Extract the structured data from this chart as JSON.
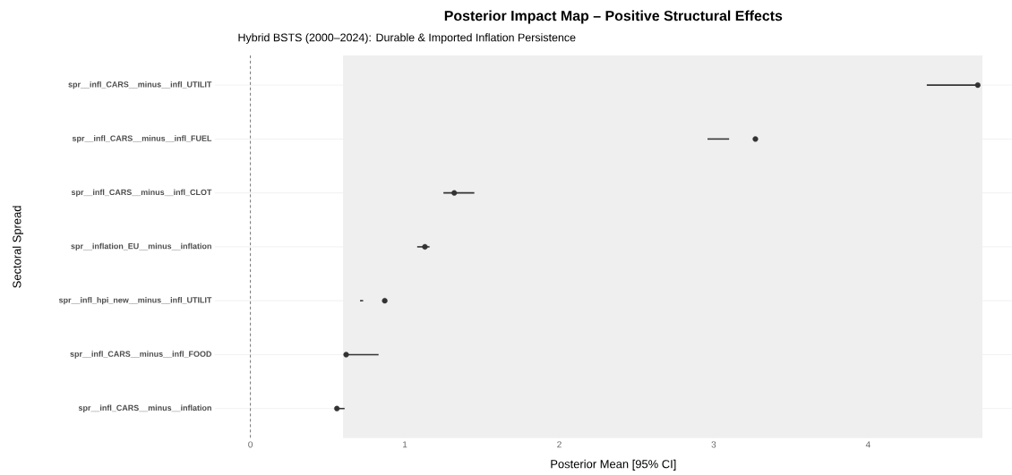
{
  "chart_data": {
    "type": "scatter",
    "orientation": "horizontal",
    "title": "Posterior Impact Map – Positive Structural Effects",
    "subtitle": "Hybrid BSTS (2000–2024): Durable & Imported Inflation Persistence",
    "xlabel": "Posterior Mean [95% CI]",
    "ylabel": "Sectoral Spread",
    "categories": [
      "spr__infl_CARS__minus__infl_UTILIT",
      "spr__infl_CARS__minus__infl_FUEL",
      "spr__infl_CARS__minus__infl_CLOT",
      "spr__inflation_EU__minus__inflation",
      "spr__infl_hpi_new__minus__infl_UTILIT",
      "spr__infl_CARS__minus__infl_FOOD",
      "spr__infl_CARS__minus__inflation"
    ],
    "series": [
      {
        "type": "bar",
        "color": "#333333",
        "base": [
          4.38,
          2.96,
          1.25,
          1.08,
          0.71,
          0.62,
          0.56
        ],
        "values": [
          0.33,
          0.14,
          0.2,
          0.08,
          0.02,
          0.21,
          0.05
        ]
      },
      {
        "color": "#333333",
        "values": [
          4.71,
          3.27,
          1.32,
          1.13,
          0.87,
          0.62,
          0.56
        ]
      }
    ],
    "marker": "circle",
    "xlim": [
      -0.23,
      4.93
    ],
    "xticks": [
      0,
      1,
      2,
      3,
      4
    ],
    "grid": true,
    "ref_lines": [
      {
        "axis": "x",
        "value": 0,
        "color": "#555555",
        "line_style": "dashed"
      }
    ],
    "bands": [
      {
        "axis": "x",
        "from": 0.6,
        "to": 4.74,
        "color": "#efefef"
      }
    ]
  }
}
